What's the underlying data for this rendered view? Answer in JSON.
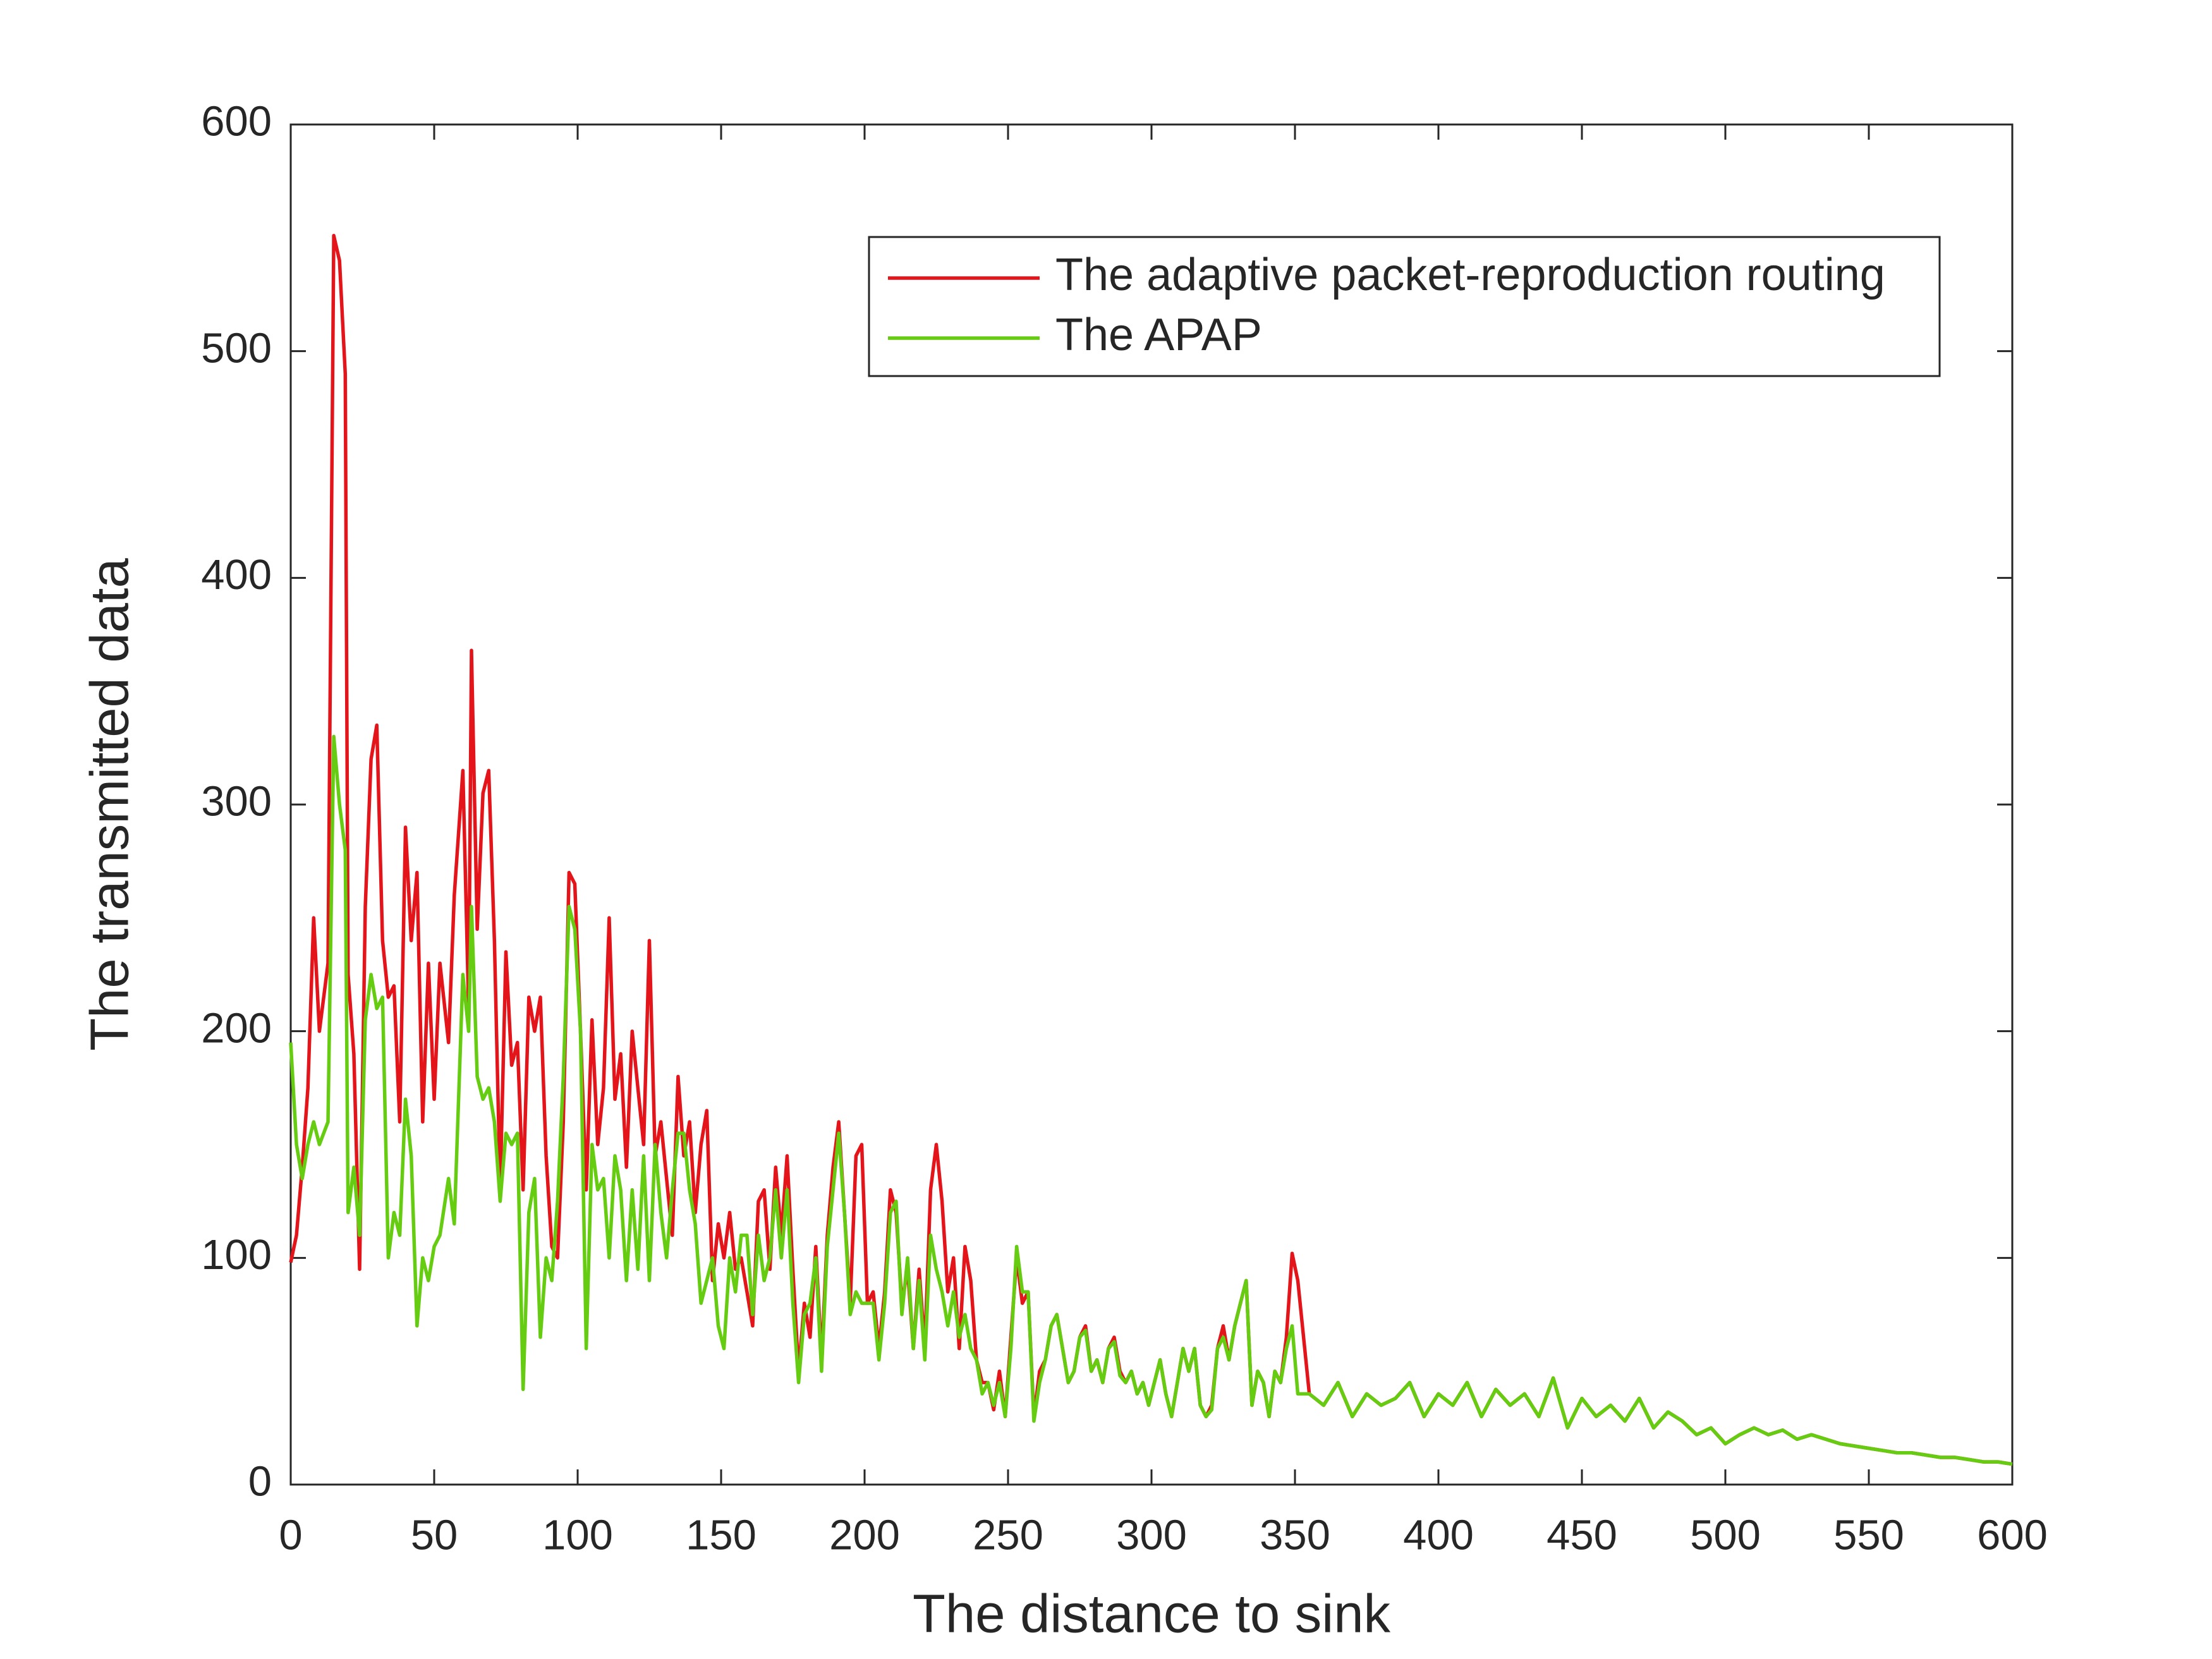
{
  "chart_data": {
    "type": "line",
    "xlabel": "The distance to sink",
    "ylabel": "The transmitted data",
    "xlim": [
      0,
      600
    ],
    "ylim": [
      0,
      600
    ],
    "xticks": [
      0,
      50,
      100,
      150,
      200,
      250,
      300,
      350,
      400,
      450,
      500,
      550,
      600
    ],
    "yticks": [
      0,
      100,
      200,
      300,
      400,
      500,
      600
    ],
    "legend": "upper right",
    "x": [
      0,
      2,
      4,
      6,
      8,
      10,
      13,
      15,
      17,
      19,
      20,
      22,
      24,
      26,
      28,
      30,
      32,
      34,
      36,
      38,
      40,
      42,
      44,
      46,
      48,
      50,
      52,
      55,
      57,
      60,
      62,
      63,
      65,
      67,
      69,
      71,
      73,
      75,
      77,
      79,
      81,
      83,
      85,
      87,
      89,
      91,
      93,
      95,
      97,
      99,
      101,
      103,
      105,
      107,
      109,
      111,
      113,
      115,
      117,
      119,
      121,
      123,
      125,
      127,
      129,
      131,
      133,
      135,
      137,
      139,
      141,
      143,
      145,
      147,
      149,
      151,
      153,
      155,
      157,
      159,
      161,
      163,
      165,
      167,
      169,
      171,
      173,
      175,
      177,
      179,
      181,
      183,
      185,
      187,
      189,
      191,
      193,
      195,
      197,
      199,
      201,
      203,
      205,
      207,
      209,
      211,
      213,
      215,
      217,
      219,
      221,
      223,
      225,
      227,
      229,
      231,
      233,
      235,
      237,
      239,
      241,
      243,
      245,
      247,
      249,
      251,
      253,
      255,
      257,
      259,
      261,
      263,
      265,
      267,
      269,
      271,
      273,
      275,
      277,
      279,
      281,
      283,
      285,
      287,
      289,
      291,
      293,
      295,
      297,
      299,
      301,
      303,
      305,
      307,
      309,
      311,
      313,
      315,
      317,
      319,
      321,
      323,
      325,
      327,
      329,
      331,
      333,
      335,
      337,
      339,
      341,
      343,
      345,
      347,
      349,
      351,
      355,
      360,
      365,
      370,
      375,
      380,
      385,
      390,
      395,
      400,
      405,
      410,
      415,
      420,
      425,
      430,
      435,
      440,
      445,
      450,
      455,
      460,
      465,
      470,
      475,
      480,
      485,
      490,
      495,
      500,
      505,
      510,
      515,
      520,
      525,
      530,
      535,
      540,
      545,
      550,
      555,
      560,
      565,
      570,
      575,
      580,
      585,
      590,
      595,
      600
    ],
    "series": [
      {
        "name": "The adaptive packet-reproduction routing",
        "color": "#e3151a",
        "values": [
          98,
          110,
          140,
          175,
          250,
          200,
          230,
          551,
          540,
          490,
          225,
          190,
          95,
          255,
          320,
          335,
          240,
          215,
          220,
          160,
          290,
          240,
          270,
          160,
          230,
          170,
          230,
          195,
          260,
          315,
          210,
          368,
          245,
          305,
          315,
          240,
          130,
          235,
          185,
          195,
          130,
          215,
          200,
          215,
          145,
          105,
          100,
          160,
          270,
          265,
          200,
          130,
          205,
          150,
          175,
          250,
          170,
          190,
          140,
          200,
          175,
          150,
          240,
          145,
          160,
          135,
          110,
          180,
          145,
          160,
          120,
          150,
          165,
          90,
          115,
          100,
          120,
          95,
          100,
          85,
          70,
          125,
          130,
          95,
          140,
          110,
          145,
          95,
          50,
          80,
          65,
          105,
          55,
          110,
          140,
          160,
          120,
          80,
          145,
          150,
          80,
          85,
          60,
          85,
          130,
          120,
          80,
          95,
          60,
          95,
          60,
          130,
          150,
          125,
          85,
          100,
          60,
          105,
          90,
          55,
          45,
          45,
          33,
          50,
          30,
          65,
          100,
          80,
          85,
          30,
          50,
          55,
          70,
          75,
          60,
          45,
          50,
          65,
          70,
          50,
          55,
          45,
          60,
          65,
          50,
          45,
          50,
          40,
          45,
          35,
          45,
          55,
          40,
          30,
          45,
          60,
          50,
          60,
          35,
          30,
          35,
          60,
          70,
          55,
          70,
          80,
          90,
          35,
          50,
          45,
          30,
          50,
          45,
          65,
          102,
          90,
          40,
          35,
          45,
          30,
          40,
          35,
          38,
          45,
          30,
          40,
          35,
          45,
          30,
          42,
          35,
          40,
          30,
          47,
          25,
          38,
          30,
          35,
          28,
          38,
          25,
          32,
          28,
          22,
          25,
          18,
          22,
          25,
          22,
          24,
          20,
          22,
          20,
          18,
          17,
          16,
          15,
          14,
          14,
          13,
          12,
          12,
          11,
          10,
          10,
          9
        ]
      },
      {
        "name": "The APAP",
        "color": "#66cc11",
        "values": [
          195,
          150,
          135,
          150,
          160,
          150,
          160,
          330,
          300,
          280,
          120,
          140,
          110,
          205,
          225,
          210,
          215,
          100,
          120,
          110,
          170,
          145,
          70,
          100,
          90,
          105,
          110,
          135,
          115,
          225,
          200,
          255,
          180,
          170,
          175,
          160,
          125,
          155,
          150,
          155,
          42,
          120,
          135,
          65,
          100,
          90,
          125,
          180,
          255,
          245,
          200,
          60,
          150,
          130,
          135,
          100,
          145,
          130,
          90,
          130,
          95,
          145,
          90,
          150,
          120,
          100,
          130,
          155,
          155,
          130,
          115,
          80,
          90,
          100,
          70,
          60,
          100,
          85,
          110,
          110,
          75,
          110,
          90,
          100,
          130,
          100,
          130,
          80,
          45,
          75,
          80,
          100,
          50,
          105,
          130,
          155,
          120,
          75,
          85,
          80,
          80,
          80,
          55,
          80,
          120,
          125,
          75,
          100,
          60,
          90,
          55,
          110,
          95,
          85,
          70,
          85,
          65,
          75,
          60,
          55,
          40,
          45,
          35,
          45,
          30,
          60,
          105,
          85,
          85,
          28,
          45,
          55,
          70,
          75,
          60,
          45,
          50,
          65,
          68,
          50,
          55,
          45,
          60,
          63,
          48,
          45,
          50,
          40,
          45,
          35,
          45,
          55,
          40,
          30,
          45,
          60,
          50,
          60,
          35,
          30,
          33,
          60,
          65,
          55,
          70,
          80,
          90,
          35,
          50,
          45,
          30,
          50,
          45,
          60,
          70,
          40,
          40,
          35,
          45,
          30,
          40,
          35,
          38,
          45,
          30,
          40,
          35,
          45,
          30,
          42,
          35,
          40,
          30,
          47,
          25,
          38,
          30,
          35,
          28,
          38,
          25,
          32,
          28,
          22,
          25,
          18,
          22,
          25,
          22,
          24,
          20,
          22,
          20,
          18,
          17,
          16,
          15,
          14,
          14,
          13,
          12,
          12,
          11,
          10,
          10,
          9
        ]
      }
    ]
  }
}
